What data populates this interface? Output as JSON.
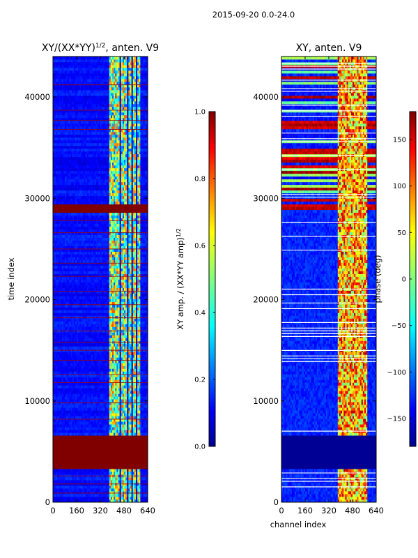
{
  "figure": {
    "suptitle": "2015-09-20 0.0-24.0"
  },
  "chart_data": [
    {
      "type": "heatmap",
      "title_main": "XY/(XX*YY)",
      "title_sup": "1/2",
      "title_tail": ", anten. V9",
      "xlabel": "",
      "ylabel": "time index",
      "xlim": [
        0,
        640
      ],
      "ylim": [
        0,
        44000
      ],
      "xticks": [
        0,
        160,
        320,
        480,
        640
      ],
      "yticks": [
        0,
        10000,
        20000,
        30000,
        40000
      ],
      "band_channels": [
        [
          380,
          400
        ],
        [
          405,
          420
        ],
        [
          425,
          445
        ],
        [
          460,
          475
        ],
        [
          480,
          500
        ],
        [
          510,
          530
        ],
        [
          540,
          560
        ],
        [
          570,
          585
        ]
      ],
      "saturated_time_ranges": [
        [
          3400,
          6600
        ],
        [
          28700,
          29300
        ]
      ],
      "thin_line_times": [
        900,
        1800,
        2600,
        8200,
        9800,
        11800,
        12600,
        14000,
        15000,
        15800,
        16900,
        18200,
        19500,
        20800,
        22300,
        23600,
        25000,
        26600,
        27800,
        36800,
        37700,
        38700,
        41200
      ],
      "colorbar": {
        "label_main": "XY amp. / (XX*YY amp)",
        "label_sup": "1/2",
        "range": [
          0.0,
          1.0
        ],
        "ticks": [
          "0.0",
          "0.2",
          "0.4",
          "0.6",
          "0.8",
          "1.0"
        ],
        "colormap": "jet"
      }
    },
    {
      "type": "heatmap",
      "title": "XY, anten. V9",
      "xlabel": "channel index",
      "ylabel": "",
      "xlim": [
        0,
        640
      ],
      "ylim": [
        0,
        44000
      ],
      "xticks": [
        0,
        160,
        320,
        480,
        640
      ],
      "yticks": [
        0,
        10000,
        20000,
        30000,
        40000
      ],
      "dark_time_ranges": [
        [
          3400,
          6600
        ]
      ],
      "colorbar": {
        "label": "phase (deg)",
        "range": [
          -180,
          180
        ],
        "ticks": [
          "150",
          "100",
          "50",
          "0",
          "−50",
          "−100",
          "−150"
        ],
        "tick_values": [
          150,
          100,
          50,
          0,
          -50,
          -100,
          -150
        ],
        "colormap": "jet"
      }
    }
  ],
  "colors": {
    "jet_dark_blue": "#00008f",
    "jet_blue": "#0000ff",
    "jet_cyan": "#00ffff",
    "jet_yellow": "#ffff00",
    "jet_red": "#ff0000",
    "jet_dark_red": "#800000",
    "axis": "#000000"
  }
}
